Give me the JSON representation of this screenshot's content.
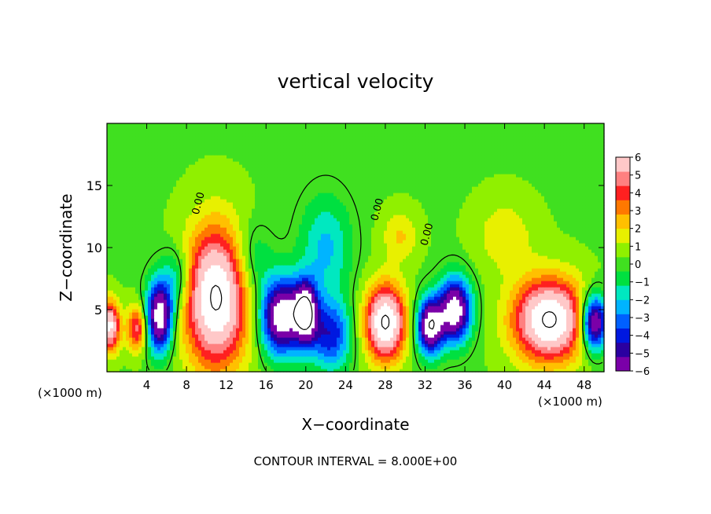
{
  "chart_data": {
    "type": "heatmap",
    "title": "vertical velocity",
    "xlabel": "X−coordinate",
    "ylabel": "Z−coordinate",
    "x_unit_left": "(×1000 m)",
    "x_unit_right": "(×1000 m)",
    "footer": "CONTOUR INTERVAL = 8.000E+00",
    "xlim": [
      0,
      50
    ],
    "ylim": [
      0,
      20
    ],
    "x_ticks": [
      4,
      8,
      12,
      16,
      20,
      24,
      28,
      32,
      36,
      40,
      44,
      48
    ],
    "y_ticks": [
      5,
      10,
      15
    ],
    "colorbar": {
      "range": [
        -6,
        6
      ],
      "ticks": [
        6,
        5,
        4,
        3,
        2,
        1,
        0,
        -1,
        -2,
        -3,
        -4,
        -5,
        -6
      ],
      "colors": [
        "#7a00a8",
        "#2a00a0",
        "#0018e0",
        "#0060ff",
        "#00b4ff",
        "#00e8c0",
        "#00e040",
        "#40e020",
        "#90f000",
        "#e8f000",
        "#ffc000",
        "#ff7800",
        "#ff2020",
        "#ff8080",
        "#ffc8c8"
      ]
    },
    "contour_labels": [
      {
        "text": "0.00",
        "x": 9.5,
        "y": 13.5
      },
      {
        "text": "0.00",
        "x": 27.5,
        "y": 13.0
      },
      {
        "text": "0.00",
        "x": 32.5,
        "y": 11.0
      }
    ],
    "updrafts": [
      {
        "x": 0.3,
        "z": 3.7,
        "w": 6.5,
        "rx": 1.0,
        "rz": 2.0
      },
      {
        "x": 3.0,
        "z": 3.5,
        "w": 4.5,
        "rx": 1.0,
        "rz": 1.8
      },
      {
        "x": 11.0,
        "z": 6.0,
        "w": 8.0,
        "rx": 3.2,
        "rz": 5.5
      },
      {
        "x": 28.0,
        "z": 4.0,
        "w": 8.0,
        "rx": 2.0,
        "rz": 3.0
      },
      {
        "x": 44.5,
        "z": 4.2,
        "w": 8.0,
        "rx": 3.6,
        "rz": 3.3
      },
      {
        "x": 40.0,
        "z": 11.0,
        "w": 1.5,
        "rx": 3.0,
        "rz": 3.0
      },
      {
        "x": 29.5,
        "z": 11.0,
        "w": 1.8,
        "rx": 1.8,
        "rz": 2.0
      }
    ],
    "downdrafts": [
      {
        "x": 5.3,
        "z": 4.5,
        "w": -8.0,
        "rx": 1.3,
        "rz": 2.8
      },
      {
        "x": 17.5,
        "z": 4.5,
        "w": -8.0,
        "rx": 2.0,
        "rz": 3.0
      },
      {
        "x": 20.0,
        "z": 4.8,
        "w": -8.0,
        "rx": 1.2,
        "rz": 2.5
      },
      {
        "x": 22.5,
        "z": 3.0,
        "w": -4.5,
        "rx": 2.0,
        "rz": 2.8
      },
      {
        "x": 22.0,
        "z": 10.0,
        "w": -2.5,
        "rx": 2.5,
        "rz": 4.0
      },
      {
        "x": 14.5,
        "z": 9.0,
        "w": -2.0,
        "rx": 2.0,
        "rz": 3.0
      },
      {
        "x": 32.5,
        "z": 3.7,
        "w": -8.0,
        "rx": 1.3,
        "rz": 2.2
      },
      {
        "x": 35.0,
        "z": 5.0,
        "w": -8.0,
        "rx": 1.6,
        "rz": 2.5
      },
      {
        "x": 49.0,
        "z": 4.0,
        "w": -8.0,
        "rx": 1.3,
        "rz": 2.2
      },
      {
        "x": 7.0,
        "z": 7.5,
        "w": -2.5,
        "rx": 1.5,
        "rz": 2.5
      }
    ]
  }
}
